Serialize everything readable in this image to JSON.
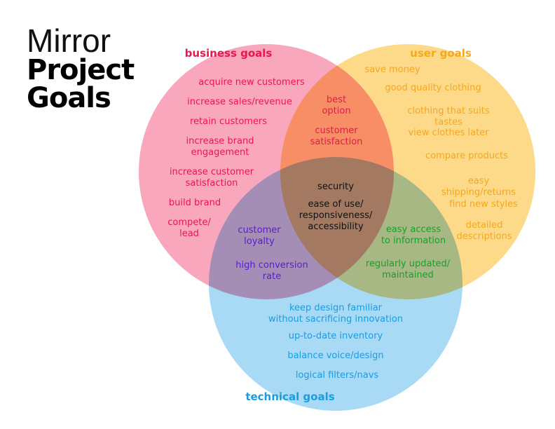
{
  "title": {
    "line1": "Mirror",
    "line2": "Project",
    "line3": "Goals"
  },
  "colors": {
    "business": "#e8174f",
    "user": "#f5a81c",
    "technical": "#1a9de0",
    "loyalty": "#5a1ad6",
    "access": "#17a02a",
    "center": "#111111",
    "business_fill": "#f9a7bd",
    "user_fill": "#fdd98a",
    "technical_fill": "#a8d9f5"
  },
  "sets": {
    "business": {
      "heading": "business goals",
      "items": [
        "acquire new customers",
        "increase sales/revenue",
        "retain customers",
        "increase brand\nengagement",
        "increase customer\nsatisfaction",
        "build brand",
        "compete/\nlead"
      ]
    },
    "user": {
      "heading": "user goals",
      "items": [
        "save money",
        "good quality clothing",
        "clothing that suits tastes",
        "view clothes later",
        "compare products",
        "easy shipping/returns",
        "find new styles",
        "detailed\ndescriptions"
      ]
    },
    "technical": {
      "heading": "technical goals",
      "items": [
        "keep design familiar\nwithout sacrificing innovation",
        "up-to-date inventory",
        "balance voice/design",
        "logical filters/navs"
      ]
    },
    "business_user": {
      "items": [
        "best\noption",
        "customer\nsatisfaction"
      ]
    },
    "business_technical": {
      "items": [
        "customer\nloyalty",
        "high conversion\nrate"
      ]
    },
    "user_technical": {
      "items": [
        "easy access\nto information",
        "regularly updated/\nmaintained"
      ]
    },
    "all": {
      "items": [
        "security",
        "ease of use/\nresponsiveness/\naccessibility"
      ]
    }
  }
}
